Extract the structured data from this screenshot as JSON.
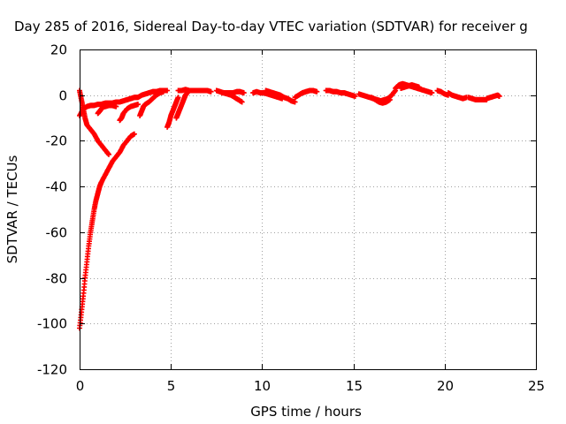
{
  "chart_data": {
    "type": "scatter",
    "title": "Day 285 of 2016, Sidereal Day-to-day VTEC variation (SDTVAR) for receiver g",
    "xlabel": "GPS time / hours",
    "ylabel": "SDTVAR / TECUs",
    "xlim": [
      0,
      25
    ],
    "ylim": [
      -120,
      20
    ],
    "xticks": [
      0,
      5,
      10,
      15,
      20,
      25
    ],
    "yticks": [
      -120,
      -100,
      -80,
      -60,
      -40,
      -20,
      0,
      20
    ],
    "grid": true,
    "marker": "+",
    "color": "#ff0000",
    "series": [
      {
        "segments": [
          [
            [
              0.0,
              -102
            ],
            [
              0.1,
              -95
            ],
            [
              0.2,
              -88
            ],
            [
              0.3,
              -80
            ],
            [
              0.4,
              -73
            ],
            [
              0.5,
              -66
            ],
            [
              0.6,
              -60
            ],
            [
              0.7,
              -55
            ],
            [
              0.8,
              -50
            ],
            [
              0.9,
              -46
            ],
            [
              1.0,
              -43
            ],
            [
              1.1,
              -40
            ],
            [
              1.2,
              -38
            ],
            [
              1.4,
              -35
            ],
            [
              1.6,
              -32
            ],
            [
              1.8,
              -29
            ],
            [
              2.0,
              -27
            ],
            [
              2.2,
              -25
            ],
            [
              2.4,
              -22
            ],
            [
              2.6,
              -20
            ],
            [
              2.8,
              -18
            ],
            [
              3.0,
              -17
            ]
          ],
          [
            [
              0.0,
              2
            ],
            [
              0.1,
              -2
            ],
            [
              0.2,
              -6
            ],
            [
              0.3,
              -10
            ],
            [
              0.4,
              -13
            ],
            [
              0.6,
              -15
            ],
            [
              0.8,
              -17
            ],
            [
              1.0,
              -20
            ],
            [
              1.2,
              -22
            ],
            [
              1.4,
              -24
            ],
            [
              1.6,
              -26
            ]
          ],
          [
            [
              0.0,
              -9
            ],
            [
              0.2,
              -6
            ],
            [
              0.4,
              -5
            ],
            [
              0.6,
              -4.5
            ],
            [
              0.8,
              -4.5
            ],
            [
              1.0,
              -4
            ],
            [
              1.2,
              -4
            ],
            [
              1.4,
              -3.5
            ],
            [
              1.6,
              -3.5
            ],
            [
              1.8,
              -3.5
            ],
            [
              2.0,
              -3
            ],
            [
              2.2,
              -3
            ],
            [
              2.4,
              -2.5
            ],
            [
              2.6,
              -2
            ],
            [
              2.8,
              -1.5
            ],
            [
              3.0,
              -1
            ],
            [
              3.2,
              -1
            ],
            [
              3.4,
              0
            ],
            [
              3.6,
              0.5
            ],
            [
              3.8,
              1
            ],
            [
              4.0,
              1.5
            ],
            [
              4.2,
              1.5
            ],
            [
              4.4,
              2
            ],
            [
              4.6,
              2
            ],
            [
              4.8,
              2
            ]
          ],
          [
            [
              1.0,
              -8
            ],
            [
              1.1,
              -7
            ],
            [
              1.2,
              -6
            ],
            [
              1.3,
              -5
            ],
            [
              1.4,
              -5
            ],
            [
              1.6,
              -4.5
            ],
            [
              1.8,
              -4.5
            ],
            [
              2.0,
              -5
            ]
          ],
          [
            [
              2.2,
              -11
            ],
            [
              2.3,
              -10
            ],
            [
              2.4,
              -8
            ],
            [
              2.6,
              -6
            ],
            [
              2.8,
              -5
            ],
            [
              3.0,
              -4.5
            ],
            [
              3.2,
              -4
            ]
          ],
          [
            [
              3.3,
              -9
            ],
            [
              3.4,
              -7
            ],
            [
              3.5,
              -5
            ],
            [
              3.6,
              -4
            ],
            [
              3.8,
              -3
            ],
            [
              4.0,
              -1.5
            ],
            [
              4.2,
              0
            ],
            [
              4.4,
              1
            ],
            [
              4.6,
              1.5
            ]
          ],
          [
            [
              4.8,
              -14
            ],
            [
              4.9,
              -12
            ],
            [
              5.0,
              -9
            ],
            [
              5.1,
              -7
            ],
            [
              5.2,
              -5
            ],
            [
              5.3,
              -3
            ],
            [
              5.4,
              -1
            ]
          ],
          [
            [
              5.3,
              -10
            ],
            [
              5.4,
              -8
            ],
            [
              5.5,
              -6
            ],
            [
              5.6,
              -4
            ],
            [
              5.7,
              -2
            ],
            [
              5.8,
              0
            ],
            [
              5.9,
              1
            ]
          ],
          [
            [
              5.4,
              2
            ],
            [
              5.6,
              2
            ],
            [
              5.8,
              2.5
            ],
            [
              6.0,
              2
            ],
            [
              6.2,
              2
            ],
            [
              6.4,
              2
            ],
            [
              6.6,
              2
            ],
            [
              6.8,
              2
            ],
            [
              7.0,
              2
            ],
            [
              7.2,
              1.5
            ]
          ],
          [
            [
              7.5,
              2
            ],
            [
              7.7,
              1.5
            ],
            [
              7.9,
              1
            ],
            [
              8.1,
              0.5
            ],
            [
              8.3,
              0
            ],
            [
              8.5,
              -1
            ],
            [
              8.7,
              -2
            ],
            [
              8.9,
              -3
            ]
          ],
          [
            [
              7.8,
              1
            ],
            [
              8.0,
              1
            ],
            [
              8.2,
              1
            ],
            [
              8.4,
              1
            ],
            [
              8.6,
              1.5
            ],
            [
              8.8,
              1.5
            ],
            [
              9.0,
              1
            ]
          ],
          [
            [
              9.5,
              1
            ],
            [
              9.7,
              1.5
            ],
            [
              9.9,
              1
            ],
            [
              10.1,
              1
            ],
            [
              10.3,
              0.5
            ],
            [
              10.5,
              0
            ],
            [
              10.7,
              -0.5
            ],
            [
              10.9,
              -1
            ],
            [
              11.1,
              -1.5
            ]
          ],
          [
            [
              10.2,
              2
            ],
            [
              10.4,
              1.5
            ],
            [
              10.6,
              1
            ],
            [
              10.8,
              0.5
            ],
            [
              11.0,
              0
            ],
            [
              11.2,
              -1
            ],
            [
              11.4,
              -1.5
            ],
            [
              11.6,
              -2.5
            ],
            [
              11.8,
              -3
            ]
          ],
          [
            [
              11.8,
              -1
            ],
            [
              12.0,
              0
            ],
            [
              12.2,
              1
            ],
            [
              12.4,
              1.5
            ],
            [
              12.6,
              2
            ],
            [
              12.8,
              2
            ],
            [
              13.0,
              1.5
            ]
          ],
          [
            [
              13.5,
              2
            ],
            [
              13.7,
              2
            ],
            [
              13.9,
              1.5
            ],
            [
              14.1,
              1.5
            ],
            [
              14.3,
              1
            ],
            [
              14.5,
              1
            ],
            [
              14.7,
              0.5
            ],
            [
              14.9,
              0
            ],
            [
              15.1,
              -0.5
            ]
          ],
          [
            [
              15.3,
              0.5
            ],
            [
              15.5,
              0
            ],
            [
              15.7,
              -0.5
            ],
            [
              15.9,
              -1
            ],
            [
              16.1,
              -1.5
            ],
            [
              16.3,
              -2
            ],
            [
              16.5,
              -2.5
            ],
            [
              16.7,
              -2
            ],
            [
              16.9,
              -1.5
            ],
            [
              17.1,
              0
            ],
            [
              17.3,
              2
            ]
          ],
          [
            [
              16.0,
              -1
            ],
            [
              16.2,
              -2
            ],
            [
              16.4,
              -3
            ],
            [
              16.6,
              -3.5
            ],
            [
              16.8,
              -3
            ],
            [
              17.0,
              -2
            ]
          ],
          [
            [
              17.3,
              3
            ],
            [
              17.5,
              4.5
            ],
            [
              17.7,
              5
            ],
            [
              17.9,
              4.5
            ],
            [
              18.1,
              4
            ],
            [
              18.3,
              3.5
            ],
            [
              18.5,
              3
            ],
            [
              18.7,
              2.5
            ],
            [
              18.9,
              2
            ],
            [
              19.1,
              1.5
            ],
            [
              19.3,
              1
            ]
          ],
          [
            [
              17.6,
              3
            ],
            [
              17.8,
              3.5
            ],
            [
              18.0,
              4
            ],
            [
              18.2,
              4.5
            ],
            [
              18.4,
              4
            ],
            [
              18.6,
              3.5
            ]
          ],
          [
            [
              19.6,
              2
            ],
            [
              19.8,
              1.5
            ],
            [
              20.0,
              0.5
            ],
            [
              20.2,
              0
            ]
          ],
          [
            [
              20.2,
              1
            ],
            [
              20.4,
              0
            ],
            [
              20.6,
              -0.5
            ],
            [
              20.8,
              -1
            ],
            [
              21.0,
              -1.5
            ],
            [
              21.2,
              -1
            ]
          ],
          [
            [
              21.3,
              -1
            ],
            [
              21.5,
              -1.5
            ],
            [
              21.7,
              -2
            ],
            [
              21.9,
              -2
            ],
            [
              22.1,
              -2
            ],
            [
              22.3,
              -2
            ]
          ],
          [
            [
              22.3,
              -1.5
            ],
            [
              22.5,
              -1
            ],
            [
              22.7,
              -0.5
            ],
            [
              22.9,
              0
            ],
            [
              23.0,
              -0.5
            ]
          ]
        ]
      }
    ]
  }
}
